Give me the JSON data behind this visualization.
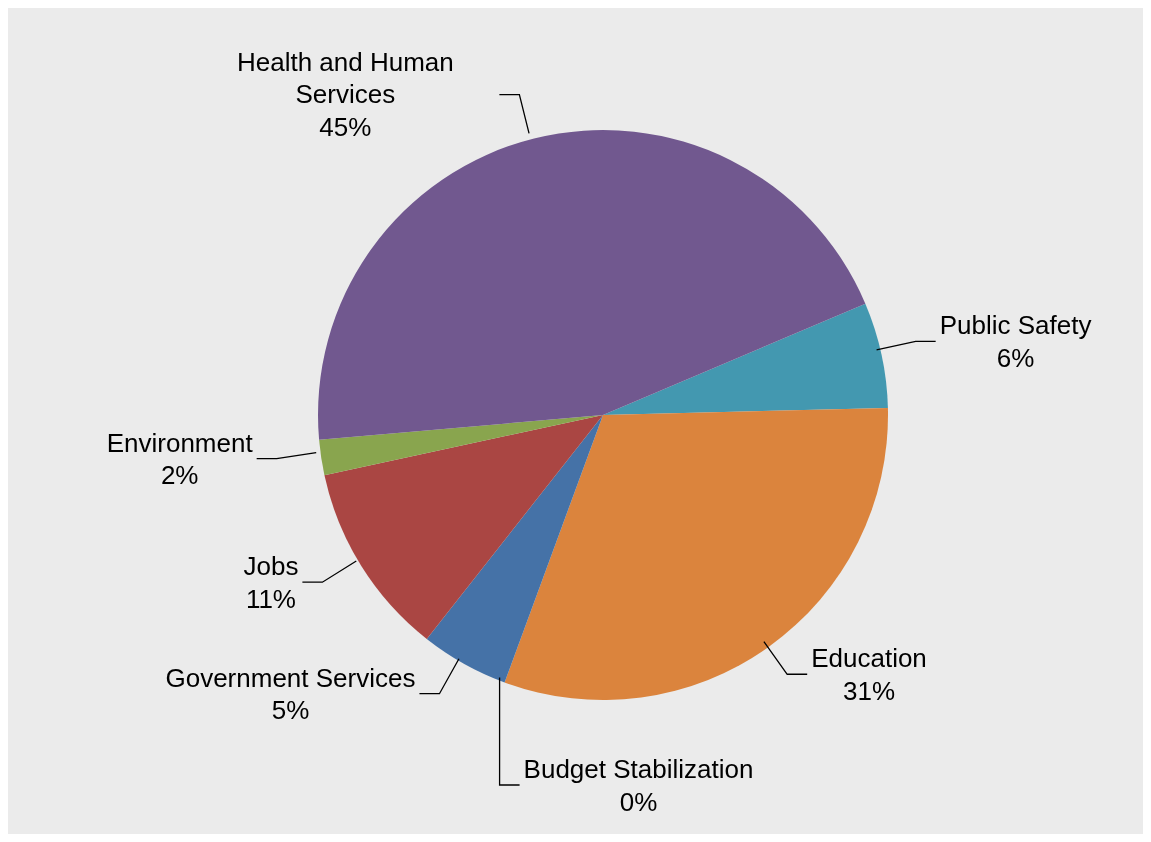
{
  "chart_data": {
    "type": "pie",
    "categories": [
      "Public Safety",
      "Education",
      "Budget Stabilization",
      "Government Services",
      "Jobs",
      "Environment",
      "Health and Human Services"
    ],
    "values": [
      6,
      31,
      0,
      5,
      11,
      2,
      45
    ],
    "value_labels": [
      "6%",
      "31%",
      "0%",
      "5%",
      "11%",
      "2%",
      "45%"
    ],
    "colors": [
      "#4398b0",
      "#db843d",
      "#93a9cf",
      "#4572a7",
      "#aa4643",
      "#89a54e",
      "#71588f"
    ]
  }
}
